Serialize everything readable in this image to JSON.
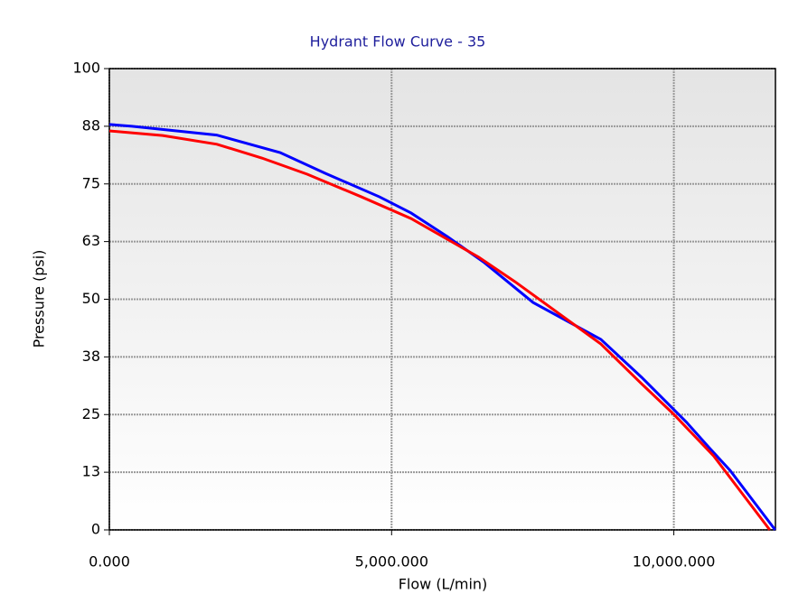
{
  "chart_data": {
    "type": "line",
    "title": "Hydrant Flow Curve - 35",
    "xlabel": "Flow (L/min)",
    "ylabel": "Pressure (psi)",
    "xlim": [
      0,
      11800
    ],
    "ylim": [
      0,
      100
    ],
    "xticks": [
      {
        "value": 0,
        "label": "0.000"
      },
      {
        "value": 5000,
        "label": "5,000.000"
      },
      {
        "value": 10000,
        "label": "10,000.000"
      }
    ],
    "yticks": [
      0,
      {
        "value": 12.5,
        "label": "13"
      },
      25,
      {
        "value": 37.5,
        "label": "38"
      },
      50,
      {
        "value": 62.5,
        "label": "63"
      },
      75,
      {
        "value": 87.5,
        "label": "88"
      },
      100
    ],
    "grid": true,
    "series": [
      {
        "color": "#0000ff",
        "x": [
          0,
          400,
          1900,
          3025,
          3825,
          4785,
          5345,
          5985,
          6626,
          7506,
          8707,
          9427,
          10227,
          10627,
          10996,
          11796
        ],
        "values": [
          87.9,
          87.5,
          85.6,
          81.8,
          77.3,
          72.2,
          68.7,
          63.6,
          58.1,
          49.3,
          41.3,
          33.1,
          23.3,
          17.8,
          12.9,
          0
        ]
      },
      {
        "color": "#ff0000",
        "x": [
          0,
          944,
          1905,
          2705,
          3505,
          4465,
          5345,
          6546,
          7186,
          8707,
          9427,
          9987,
          10707,
          11700
        ],
        "values": [
          86.5,
          85.5,
          83.6,
          80.6,
          77.1,
          72.2,
          67.5,
          59.1,
          53.8,
          40.3,
          31.7,
          25.2,
          16.0,
          0
        ]
      }
    ]
  }
}
